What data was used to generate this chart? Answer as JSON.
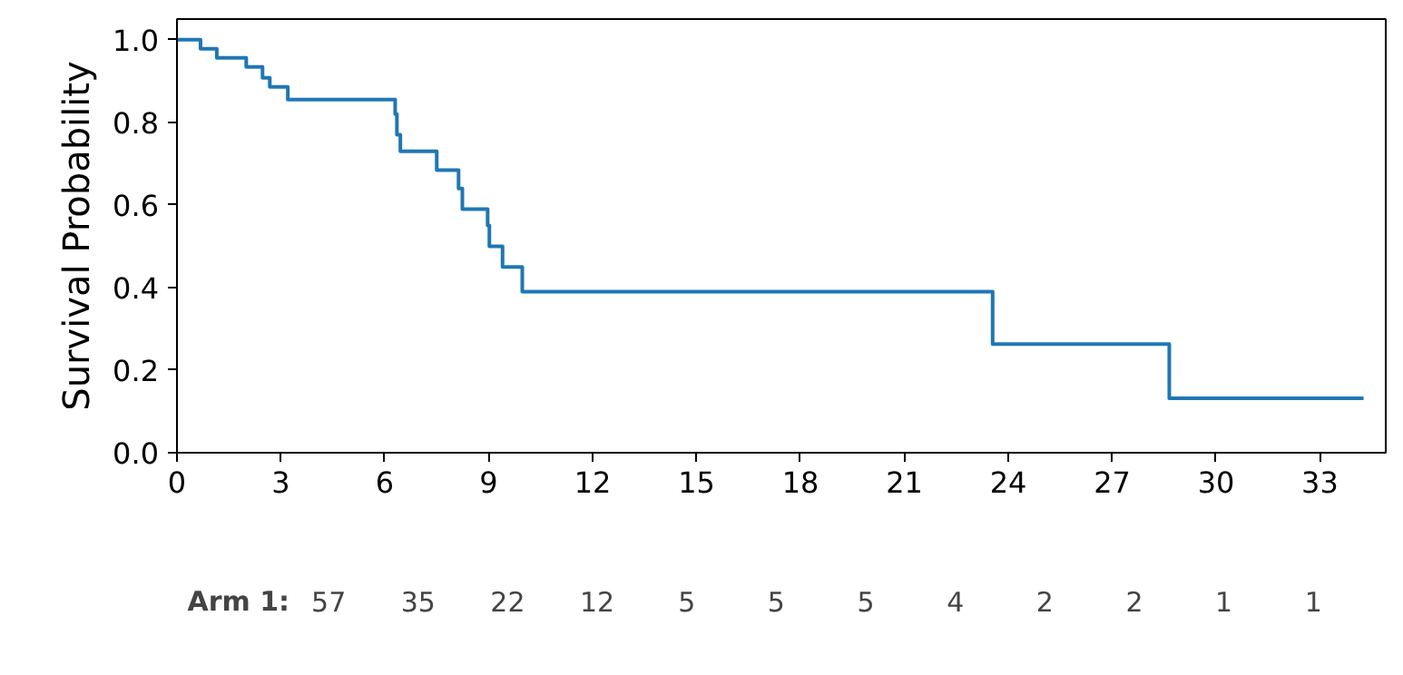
{
  "chart_data": {
    "type": "step",
    "ylabel": "Survival Probability",
    "x": [
      0,
      0.68,
      1.15,
      2.0,
      2.47,
      2.68,
      3.2,
      6.3,
      6.35,
      6.45,
      7.5,
      8.13,
      8.24,
      8.97,
      9.02,
      9.4,
      9.97,
      23.55,
      28.65,
      34.26
    ],
    "series": [
      {
        "color": "#1f77b4",
        "values": [
          1.0,
          0.978,
          0.956,
          0.934,
          0.908,
          0.886,
          0.855,
          0.82,
          0.77,
          0.73,
          0.684,
          0.64,
          0.59,
          0.55,
          0.5,
          0.45,
          0.39,
          0.263,
          0.132,
          0.132
        ]
      }
    ],
    "xlim": [
      0,
      34.9
    ],
    "ylim": [
      0,
      1.05
    ],
    "xticks": [
      0,
      3,
      6,
      9,
      12,
      15,
      18,
      21,
      24,
      27,
      30,
      33
    ],
    "yticks": [
      {
        "value": 0,
        "label": "0.0"
      },
      {
        "value": 0.2,
        "label": "0.2"
      },
      {
        "value": 0.4,
        "label": "0.4"
      },
      {
        "value": 0.6,
        "label": "0.6"
      },
      {
        "value": 0.8,
        "label": "0.8"
      },
      {
        "value": 1.0,
        "label": "1.0"
      }
    ],
    "grid": false,
    "annotations": [
      "Arm 1:",
      "57",
      "35",
      "22",
      "12",
      "5",
      "5",
      "5",
      "4",
      "2",
      "2",
      "1",
      "1"
    ]
  }
}
